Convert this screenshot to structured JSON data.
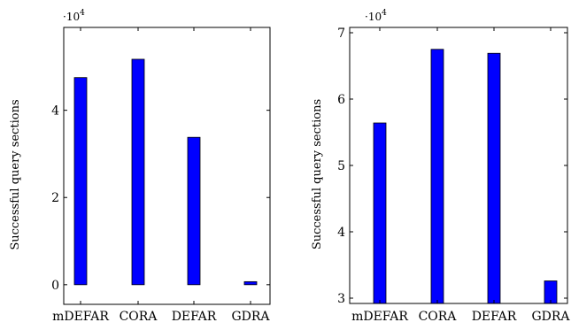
{
  "chart_data": [
    {
      "type": "bar",
      "categories": [
        "mDEFAR",
        "CORA",
        "DEFAR",
        "GDRA"
      ],
      "values": [
        47500,
        51700,
        33800,
        700
      ],
      "ylabel": "Successful query sections",
      "xlabel": "",
      "title": "",
      "scale_label": "·10",
      "scale_exponent": "4",
      "ylim": [
        -0.45,
        5.9
      ],
      "yticks": [
        0,
        2,
        4
      ],
      "ytick_labels": [
        "0",
        "2",
        "4"
      ],
      "grid": false,
      "bar_color": "#0000ff"
    },
    {
      "type": "bar",
      "categories": [
        "mDEFAR",
        "CORA",
        "DEFAR",
        "GDRA"
      ],
      "values": [
        56400,
        67500,
        66900,
        32600
      ],
      "ylabel": "Successful query sections",
      "xlabel": "",
      "title": "",
      "scale_label": "·10",
      "scale_exponent": "4",
      "ylim": [
        2.92,
        7.08
      ],
      "yticks": [
        3,
        4,
        5,
        6,
        7
      ],
      "ytick_labels": [
        "3",
        "4",
        "5",
        "6",
        "7"
      ],
      "grid": false,
      "bar_color": "#0000ff"
    }
  ]
}
